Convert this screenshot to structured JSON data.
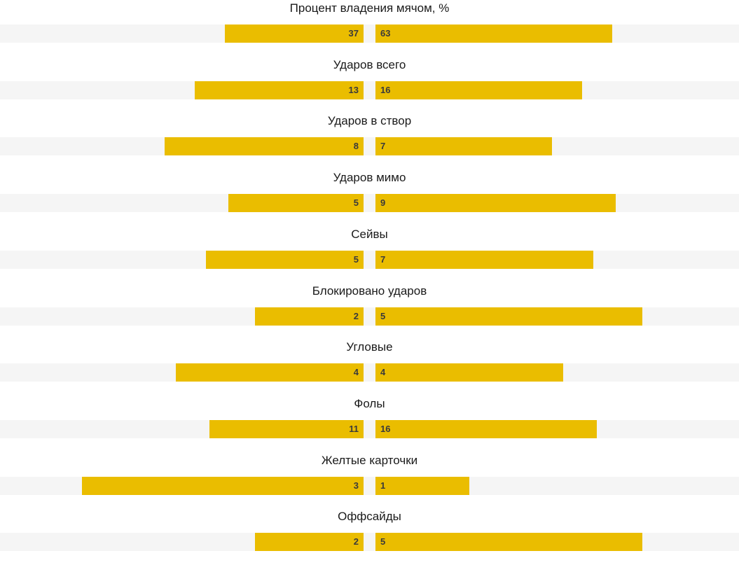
{
  "stats": [
    {
      "label": "Процент владения мячом, %",
      "home": "37",
      "away": "63",
      "home_fill": 0.37,
      "away_fill": 0.63
    },
    {
      "label": "Ударов всего",
      "home": "13",
      "away": "16",
      "home_fill": 0.45,
      "away_fill": 0.55
    },
    {
      "label": "Ударов в створ",
      "home": "8",
      "away": "7",
      "home_fill": 0.53,
      "away_fill": 0.47
    },
    {
      "label": "Ударов мимо",
      "home": "5",
      "away": "9",
      "home_fill": 0.36,
      "away_fill": 0.64
    },
    {
      "label": "Сейвы",
      "home": "5",
      "away": "7",
      "home_fill": 0.42,
      "away_fill": 0.58
    },
    {
      "label": "Блокировано ударов",
      "home": "2",
      "away": "5",
      "home_fill": 0.29,
      "away_fill": 0.71
    },
    {
      "label": "Угловые",
      "home": "4",
      "away": "4",
      "home_fill": 0.5,
      "away_fill": 0.5
    },
    {
      "label": "Фолы",
      "home": "11",
      "away": "16",
      "home_fill": 0.41,
      "away_fill": 0.59
    },
    {
      "label": "Желтые карточки",
      "home": "3",
      "away": "1",
      "home_fill": 0.75,
      "away_fill": 0.25
    },
    {
      "label": "Оффсайды",
      "home": "2",
      "away": "5",
      "home_fill": 0.29,
      "away_fill": 0.71
    }
  ],
  "colors": {
    "bar": "#eabd00",
    "track": "#f5f5f5",
    "label": "#1a1a1a",
    "value": "#3a3a3a"
  }
}
